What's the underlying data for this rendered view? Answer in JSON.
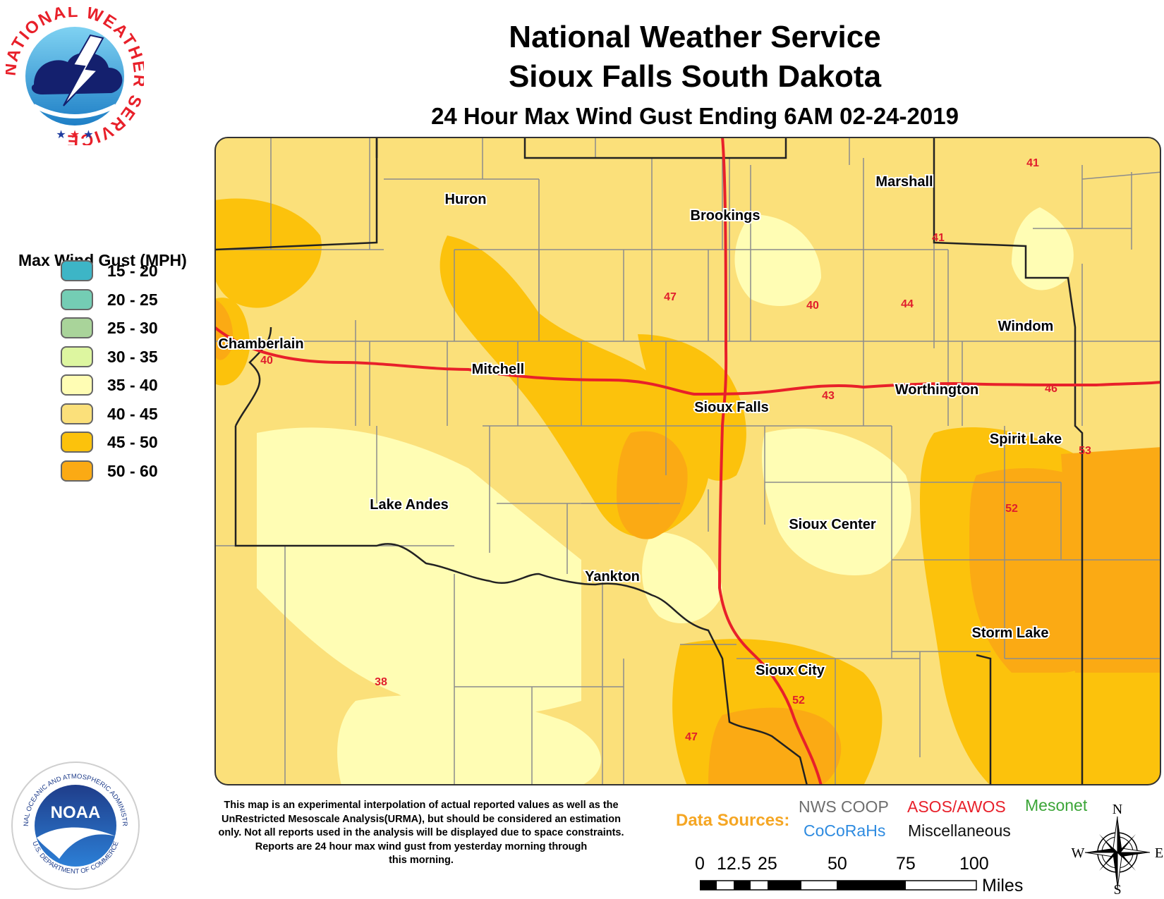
{
  "header": {
    "line1": "National Weather Service",
    "line2": "Sioux Falls South Dakota",
    "line3": "24 Hour Max Wind Gust Ending 6AM 02-24-2019"
  },
  "nws_logo": {
    "ring_text": "NATIONAL WEATHER SERVICE",
    "icon": "nws-logo"
  },
  "noaa_logo": {
    "center_text": "NOAA",
    "ring_text": "NATIONAL OCEANIC AND ATMOSPHERIC ADMINISTRATION",
    "bottom_text": "U.S. DEPARTMENT OF COMMERCE",
    "icon": "noaa-logo"
  },
  "legend": {
    "title": "Max Wind Gust (MPH)",
    "items": [
      {
        "label": "15 - 20",
        "color": "#3DB5C6"
      },
      {
        "label": "20 - 25",
        "color": "#74CDB4"
      },
      {
        "label": "25 - 30",
        "color": "#A9D49A"
      },
      {
        "label": "30 - 35",
        "color": "#DDF6A0"
      },
      {
        "label": "35 - 40",
        "color": "#FFFDB4"
      },
      {
        "label": "40 - 45",
        "color": "#FBE07A"
      },
      {
        "label": "45 - 50",
        "color": "#FCC20C"
      },
      {
        "label": "50 - 60",
        "color": "#FBAA14"
      }
    ]
  },
  "cities": [
    "Huron",
    "Brookings",
    "Marshall",
    "Windom",
    "Chamberlain",
    "Mitchell",
    "Sioux Falls",
    "Worthington",
    "Spirit Lake",
    "Lake Andes",
    "Sioux Center",
    "Yankton",
    "Storm Lake",
    "Sioux City"
  ],
  "observations": [
    "41",
    "41",
    "47",
    "40",
    "44",
    "40",
    "43",
    "46",
    "53",
    "52",
    "38",
    "52",
    "47"
  ],
  "disclaimer": {
    "lines": [
      "This map is an experimental interpolation of actual reported values as well as the",
      "UnRestricted Mesoscale Analysis(URMA), but should be considered an estimation",
      "only. Not all reports used in the analysis will be displayed due to space constraints.",
      "Reports are 24 hour max wind gust from yesterday morning through",
      "this morning."
    ]
  },
  "data_sources": {
    "title": "Data Sources:",
    "items": [
      {
        "label": "NWS COOP",
        "color": "#6E6E6E"
      },
      {
        "label": "ASOS/AWOS",
        "color": "#E8202A"
      },
      {
        "label": "Mesonet",
        "color": "#3BA537"
      },
      {
        "label": "CoCoRaHs",
        "color": "#2E8BE0"
      },
      {
        "label": "Miscellaneous",
        "color": "#111111"
      }
    ]
  },
  "scale_bar": {
    "ticks": [
      "0",
      "12.5",
      "25",
      "50",
      "75",
      "100"
    ],
    "units": "Miles"
  },
  "compass": {
    "n": "N",
    "s": "S",
    "e": "E",
    "w": "W",
    "icon": "compass-rose-icon"
  },
  "colors": {
    "highway": "#E8202A",
    "county_line": "#8C8C8C",
    "state_line": "#222222",
    "obs_text": "#E01E2C"
  }
}
